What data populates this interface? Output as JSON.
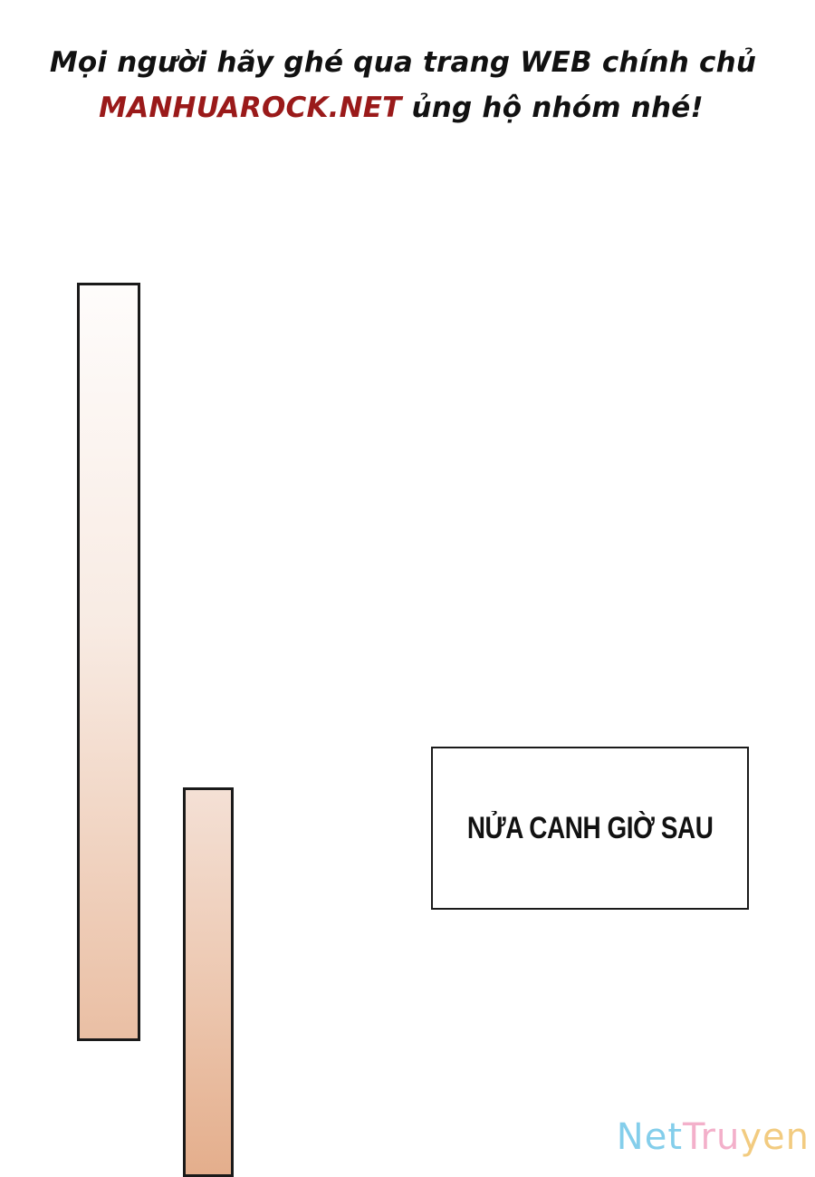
{
  "banner": {
    "line1": "Mọi người hãy ghé qua trang WEB chính chủ",
    "site": "MANHUAROCK.NET",
    "line2_rest": " ủng hộ nhóm nhé!",
    "text_color": "#111111",
    "site_color": "#9a1a1a"
  },
  "caption": {
    "text": "NỬA CANH GIỜ SAU"
  },
  "watermark": {
    "part1": "Net",
    "part2": "Tru",
    "part3": "yen",
    "colors": [
      "#6fc6e8",
      "#f2a3c1",
      "#f0c36a"
    ]
  }
}
